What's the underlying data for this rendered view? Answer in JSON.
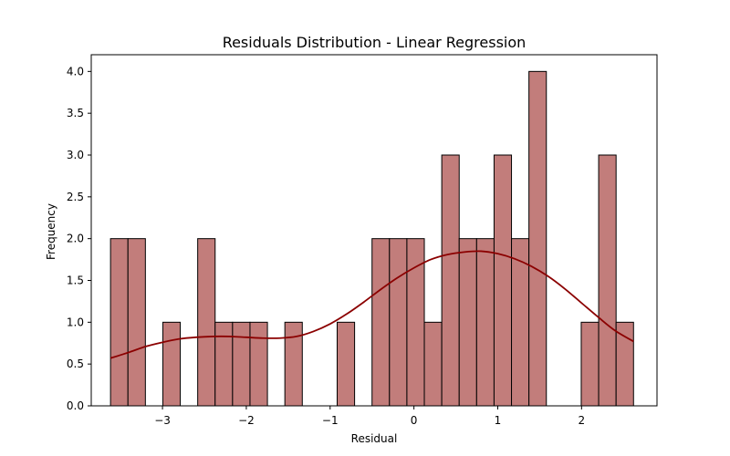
{
  "chart_data": {
    "type": "bar",
    "title": "Residuals Distribution - Linear Regression",
    "xlabel": "Residual",
    "ylabel": "Frequency",
    "xlim": [
      -3.85,
      2.9
    ],
    "ylim": [
      0,
      4.2
    ],
    "xticks": [
      {
        "value": -3,
        "label": "−3"
      },
      {
        "value": -2,
        "label": "−2"
      },
      {
        "value": -1,
        "label": "−1"
      },
      {
        "value": 0,
        "label": "0"
      },
      {
        "value": 1,
        "label": "1"
      },
      {
        "value": 2,
        "label": "2"
      }
    ],
    "yticks": [
      {
        "value": 0,
        "label": "0.0"
      },
      {
        "value": 0.5,
        "label": "0.5"
      },
      {
        "value": 1,
        "label": "1.0"
      },
      {
        "value": 1.5,
        "label": "1.5"
      },
      {
        "value": 2,
        "label": "2.0"
      },
      {
        "value": 2.5,
        "label": "2.5"
      },
      {
        "value": 3,
        "label": "3.0"
      },
      {
        "value": 3.5,
        "label": "3.5"
      },
      {
        "value": 4,
        "label": "4.0"
      }
    ],
    "bins": {
      "start": -3.62,
      "end": 2.62,
      "count": 30
    },
    "values": [
      2,
      2,
      0,
      1,
      0,
      2,
      1,
      1,
      1,
      0,
      1,
      0,
      0,
      1,
      0,
      2,
      2,
      2,
      1,
      3,
      2,
      2,
      3,
      2,
      4,
      0,
      0,
      1,
      3,
      1
    ],
    "kde": {
      "x": [
        -3.62,
        -3.4,
        -3.2,
        -3.0,
        -2.8,
        -2.6,
        -2.4,
        -2.2,
        -2.0,
        -1.8,
        -1.6,
        -1.4,
        -1.2,
        -1.0,
        -0.8,
        -0.6,
        -0.4,
        -0.2,
        0.0,
        0.2,
        0.4,
        0.6,
        0.8,
        1.0,
        1.2,
        1.4,
        1.6,
        1.8,
        2.0,
        2.2,
        2.4,
        2.62
      ],
      "y": [
        0.57,
        0.64,
        0.71,
        0.76,
        0.8,
        0.82,
        0.83,
        0.83,
        0.82,
        0.81,
        0.81,
        0.83,
        0.89,
        0.98,
        1.1,
        1.24,
        1.39,
        1.53,
        1.65,
        1.75,
        1.81,
        1.84,
        1.85,
        1.82,
        1.76,
        1.67,
        1.55,
        1.4,
        1.23,
        1.06,
        0.9,
        0.77
      ]
    },
    "bar_color": "#c27d7b",
    "edge_color": "#000000",
    "kde_color": "#8b0000",
    "grid": false,
    "legend": "none"
  }
}
